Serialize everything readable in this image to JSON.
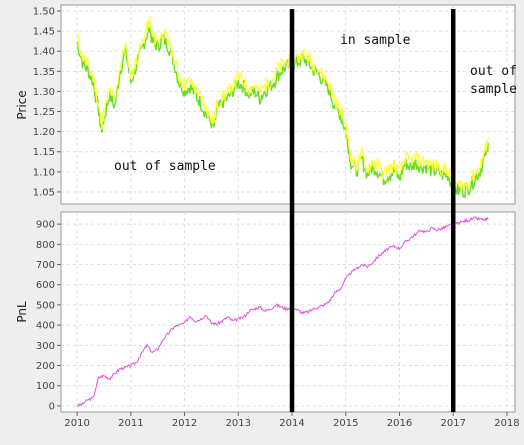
{
  "chart_data": [
    {
      "type": "line",
      "ylabel": "Price",
      "ylim": [
        1.02,
        1.515
      ],
      "y_ticks": [
        "1.05",
        "1.10",
        "1.15",
        "1.20",
        "1.25",
        "1.30",
        "1.35",
        "1.40",
        "1.45",
        "1.50"
      ],
      "y_tick_values": [
        1.05,
        1.1,
        1.15,
        1.2,
        1.25,
        1.3,
        1.35,
        1.4,
        1.45,
        1.5
      ],
      "grid": true,
      "series_colors": [
        "#ffff33",
        "#66dd22"
      ],
      "x": [
        2010.0,
        2010.1,
        2010.2,
        2010.3,
        2010.4,
        2010.45,
        2010.5,
        2010.6,
        2010.7,
        2010.8,
        2010.9,
        2011.0,
        2011.1,
        2011.2,
        2011.3,
        2011.35,
        2011.4,
        2011.5,
        2011.6,
        2011.7,
        2011.8,
        2011.9,
        2012.0,
        2012.1,
        2012.2,
        2012.3,
        2012.4,
        2012.5,
        2012.55,
        2012.6,
        2012.7,
        2012.8,
        2012.9,
        2013.0,
        2013.1,
        2013.2,
        2013.3,
        2013.4,
        2013.5,
        2013.6,
        2013.7,
        2013.8,
        2013.9,
        2014.0,
        2014.1,
        2014.2,
        2014.3,
        2014.4,
        2014.5,
        2014.6,
        2014.7,
        2014.8,
        2014.9,
        2015.0,
        2015.05,
        2015.1,
        2015.2,
        2015.3,
        2015.4,
        2015.5,
        2015.6,
        2015.7,
        2015.8,
        2015.9,
        2016.0,
        2016.1,
        2016.2,
        2016.3,
        2016.4,
        2016.5,
        2016.6,
        2016.7,
        2016.8,
        2016.9,
        2017.0,
        2017.1,
        2017.2,
        2017.3,
        2017.4,
        2017.5,
        2017.6,
        2017.65
      ],
      "values": [
        1.43,
        1.38,
        1.36,
        1.33,
        1.26,
        1.21,
        1.24,
        1.3,
        1.27,
        1.36,
        1.41,
        1.33,
        1.37,
        1.41,
        1.45,
        1.47,
        1.43,
        1.42,
        1.44,
        1.42,
        1.38,
        1.33,
        1.31,
        1.32,
        1.3,
        1.28,
        1.25,
        1.23,
        1.22,
        1.26,
        1.28,
        1.29,
        1.31,
        1.33,
        1.32,
        1.3,
        1.31,
        1.29,
        1.31,
        1.32,
        1.34,
        1.36,
        1.37,
        1.37,
        1.38,
        1.39,
        1.38,
        1.36,
        1.35,
        1.33,
        1.31,
        1.27,
        1.25,
        1.21,
        1.17,
        1.13,
        1.11,
        1.14,
        1.1,
        1.12,
        1.11,
        1.09,
        1.1,
        1.11,
        1.09,
        1.13,
        1.12,
        1.13,
        1.12,
        1.12,
        1.11,
        1.11,
        1.1,
        1.1,
        1.07,
        1.06,
        1.06,
        1.07,
        1.09,
        1.11,
        1.15,
        1.18
      ]
    },
    {
      "type": "line",
      "ylabel": "PnL",
      "ylim": [
        -30,
        960
      ],
      "y_ticks": [
        "0",
        "100",
        "200",
        "300",
        "400",
        "500",
        "600",
        "700",
        "800",
        "900"
      ],
      "y_tick_values": [
        0,
        100,
        200,
        300,
        400,
        500,
        600,
        700,
        800,
        900
      ],
      "grid": true,
      "series_colors": [
        "#dd55dd"
      ],
      "x_ticks": [
        "2010",
        "2011",
        "2012",
        "2013",
        "2014",
        "2015",
        "2016",
        "2017",
        "2018"
      ],
      "x_tick_values": [
        2010,
        2011,
        2012,
        2013,
        2014,
        2015,
        2016,
        2017,
        2018
      ],
      "xlim": [
        2009.7,
        2018.15
      ],
      "x": [
        2010.0,
        2010.1,
        2010.2,
        2010.3,
        2010.4,
        2010.5,
        2010.6,
        2010.7,
        2010.8,
        2010.9,
        2011.0,
        2011.1,
        2011.2,
        2011.3,
        2011.4,
        2011.5,
        2011.6,
        2011.7,
        2011.8,
        2011.9,
        2012.0,
        2012.1,
        2012.2,
        2012.3,
        2012.4,
        2012.5,
        2012.6,
        2012.7,
        2012.8,
        2012.9,
        2013.0,
        2013.1,
        2013.2,
        2013.3,
        2013.4,
        2013.5,
        2013.6,
        2013.7,
        2013.8,
        2013.9,
        2014.0,
        2014.1,
        2014.2,
        2014.3,
        2014.4,
        2014.5,
        2014.6,
        2014.7,
        2014.8,
        2014.9,
        2015.0,
        2015.1,
        2015.2,
        2015.3,
        2015.4,
        2015.5,
        2015.6,
        2015.7,
        2015.8,
        2015.9,
        2016.0,
        2016.1,
        2016.2,
        2016.3,
        2016.4,
        2016.5,
        2016.6,
        2016.7,
        2016.8,
        2016.9,
        2017.0,
        2017.1,
        2017.2,
        2017.3,
        2017.4,
        2017.5,
        2017.6,
        2017.65
      ],
      "values": [
        0,
        10,
        30,
        40,
        140,
        150,
        135,
        160,
        185,
        190,
        200,
        215,
        260,
        300,
        265,
        280,
        330,
        360,
        390,
        400,
        410,
        445,
        420,
        430,
        450,
        410,
        405,
        420,
        440,
        420,
        430,
        440,
        470,
        480,
        490,
        470,
        480,
        500,
        490,
        480,
        490,
        475,
        460,
        465,
        480,
        490,
        500,
        520,
        560,
        580,
        630,
        660,
        680,
        700,
        690,
        710,
        740,
        760,
        780,
        790,
        780,
        810,
        830,
        850,
        870,
        860,
        880,
        870,
        880,
        890,
        900,
        905,
        915,
        920,
        930,
        925,
        920,
        925
      ]
    }
  ],
  "annotations": {
    "in_sample": "in sample",
    "out_of_sample_left": "out of sample",
    "out_of_sample_right_line1": "out of",
    "out_of_sample_right_line2": "sample"
  },
  "boundary_years": [
    2014,
    2017
  ]
}
